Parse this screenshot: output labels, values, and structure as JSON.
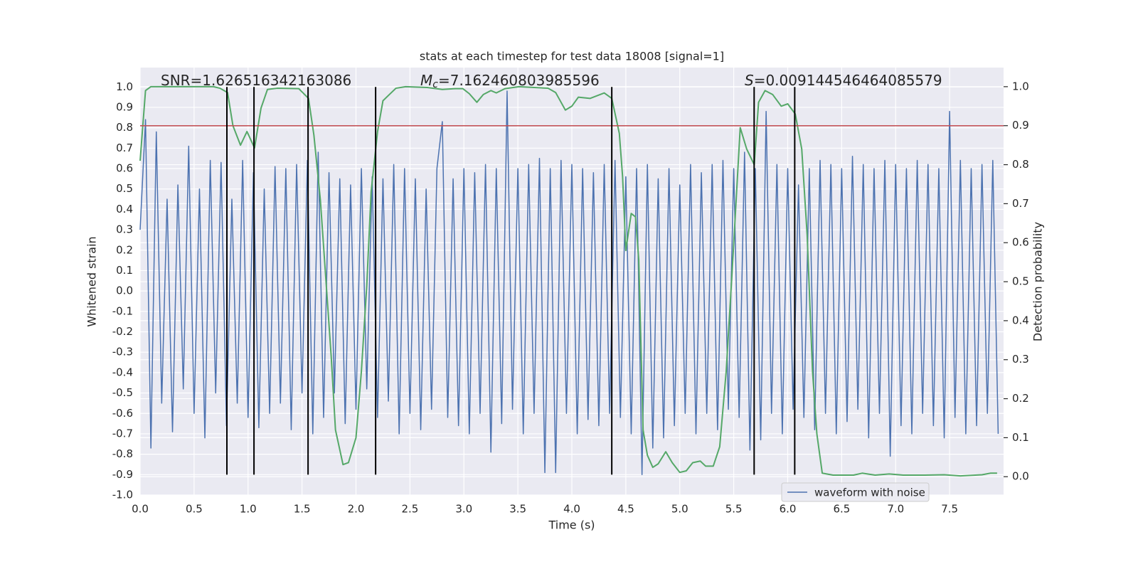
{
  "chart_data": {
    "type": "line",
    "title": "stats at each timestep for test data 18008 [signal=1]",
    "xlabel": "Time (s)",
    "ylabel": "Whitened strain",
    "y2label": "Detection probability",
    "xlim": [
      0,
      8.0
    ],
    "ylim": [
      -1.0,
      1.095
    ],
    "y2lim": [
      -0.047,
      1.049
    ],
    "xticks": [
      {
        "value": 0,
        "label": "0.0"
      },
      0.5,
      {
        "value": 1,
        "label": "1.0"
      },
      1.5,
      {
        "value": 2,
        "label": "2.0"
      },
      2.5,
      {
        "value": 3,
        "label": "3.0"
      },
      3.5,
      {
        "value": 4,
        "label": "4.0"
      },
      4.5,
      {
        "value": 5,
        "label": "5.0"
      },
      5.5,
      {
        "value": 6,
        "label": "6.0"
      },
      6.5,
      {
        "value": 7,
        "label": "7.0"
      },
      7.5
    ],
    "yticks": [
      {
        "value": -1,
        "label": "-1.0"
      },
      -0.9,
      -0.8,
      -0.7,
      -0.6,
      -0.5,
      -0.4,
      -0.3,
      -0.2,
      -0.1,
      {
        "value": 0,
        "label": "0.0"
      },
      0.1,
      0.2,
      0.3,
      0.4,
      0.5,
      0.6,
      0.7,
      0.8,
      0.9,
      {
        "value": 1,
        "label": "1.0"
      }
    ],
    "y2ticks": [
      {
        "value": 0,
        "label": "0.0"
      },
      0.1,
      0.2,
      0.3,
      0.4,
      0.5,
      0.6,
      0.7,
      0.8,
      0.9,
      {
        "value": 1,
        "label": "1.0"
      }
    ],
    "grid": true,
    "legend": "lower right",
    "annotations": [
      {
        "text": "SNR=1.626516342163086"
      },
      {
        "symbol": "M",
        "subscript": "c",
        "text": "=7.162460803985596"
      },
      {
        "symbol": "S",
        "text": "=0.009144546464085579"
      }
    ],
    "vlines": {
      "x": [
        0.804,
        1.055,
        1.556,
        2.182,
        4.37,
        5.689,
        6.065
      ],
      "ymin": -0.9,
      "ymax": 1.0,
      "color": "#000000"
    },
    "hline": {
      "y": 0.9,
      "axis": "y2",
      "color": "#c44e52"
    },
    "series": [
      {
        "name": "waveform with noise",
        "color": "#4c72b0",
        "axis": "y",
        "x": [
          0,
          0.05,
          0.1,
          0.15,
          0.2,
          0.25,
          0.3,
          0.35,
          0.4,
          0.45,
          0.5,
          0.55,
          0.6,
          0.65,
          0.7,
          0.75,
          0.8,
          0.85,
          0.9,
          0.95,
          1,
          1.05,
          1.1,
          1.15,
          1.2,
          1.25,
          1.3,
          1.35,
          1.4,
          1.45,
          1.5,
          1.55,
          1.6,
          1.65,
          1.7,
          1.75,
          1.8,
          1.85,
          1.9,
          1.95,
          2,
          2.05,
          2.1,
          2.15,
          2.2,
          2.25,
          2.3,
          2.35,
          2.4,
          2.45,
          2.5,
          2.55,
          2.6,
          2.65,
          2.7,
          2.75,
          2.8,
          2.85,
          2.9,
          2.95,
          3,
          3.05,
          3.1,
          3.15,
          3.2,
          3.25,
          3.3,
          3.35,
          3.4,
          3.45,
          3.5,
          3.55,
          3.6,
          3.65,
          3.7,
          3.75,
          3.8,
          3.85,
          3.9,
          3.95,
          4,
          4.05,
          4.1,
          4.15,
          4.2,
          4.25,
          4.3,
          4.35,
          4.4,
          4.45,
          4.5,
          4.55,
          4.6,
          4.65,
          4.7,
          4.75,
          4.8,
          4.85,
          4.9,
          4.95,
          5,
          5.05,
          5.1,
          5.15,
          5.2,
          5.25,
          5.3,
          5.35,
          5.4,
          5.45,
          5.5,
          5.55,
          5.6,
          5.65,
          5.7,
          5.75,
          5.8,
          5.85,
          5.9,
          5.95,
          6,
          6.05,
          6.1,
          6.15,
          6.2,
          6.25,
          6.3,
          6.35,
          6.4,
          6.45,
          6.5,
          6.55,
          6.6,
          6.65,
          6.7,
          6.75,
          6.8,
          6.85,
          6.9,
          6.95,
          7,
          7.05,
          7.1,
          7.15,
          7.2,
          7.25,
          7.3,
          7.35,
          7.4,
          7.45,
          7.5,
          7.55,
          7.6,
          7.65,
          7.7,
          7.75,
          7.8,
          7.85,
          7.9,
          7.95
        ],
        "values": [
          0.3,
          0.84,
          -0.77,
          0.78,
          -0.55,
          0.45,
          -0.69,
          0.52,
          -0.48,
          0.71,
          -0.6,
          0.5,
          -0.72,
          0.64,
          -0.5,
          0.63,
          -0.66,
          0.45,
          -0.55,
          0.64,
          -0.62,
          0.58,
          -0.67,
          0.5,
          -0.6,
          0.61,
          -0.55,
          0.6,
          -0.68,
          0.62,
          -0.5,
          0.64,
          -0.7,
          0.68,
          -0.62,
          0.58,
          -0.5,
          0.55,
          -0.65,
          0.52,
          -0.58,
          0.6,
          -0.48,
          0.56,
          -0.62,
          0.55,
          -0.54,
          0.62,
          -0.7,
          0.6,
          -0.6,
          0.55,
          -0.68,
          0.5,
          -0.58,
          0.6,
          0.83,
          -0.62,
          0.55,
          -0.66,
          0.6,
          -0.7,
          0.58,
          -0.6,
          0.62,
          -0.79,
          0.6,
          -0.65,
          0.98,
          -0.58,
          0.6,
          -0.7,
          0.62,
          -0.6,
          0.65,
          -0.89,
          0.6,
          -0.89,
          0.64,
          -0.6,
          0.62,
          -0.7,
          0.6,
          -0.63,
          0.58,
          -0.66,
          0.62,
          -0.6,
          0.64,
          -0.62,
          0.56,
          -0.7,
          0.6,
          -0.9,
          0.62,
          -0.77,
          0.55,
          -0.72,
          0.6,
          -0.66,
          0.52,
          -0.6,
          0.62,
          -0.7,
          0.58,
          -0.6,
          0.62,
          -0.68,
          0.64,
          -0.58,
          0.6,
          -0.62,
          0.68,
          -0.78,
          0.6,
          -0.73,
          0.88,
          -0.6,
          0.62,
          -0.7,
          0.6,
          -0.58,
          0.52,
          -0.62,
          0.6,
          -0.68,
          0.64,
          -0.6,
          0.62,
          -0.7,
          0.6,
          -0.64,
          0.66,
          -0.58,
          0.62,
          -0.72,
          0.6,
          -0.6,
          0.64,
          -0.81,
          0.62,
          -0.66,
          0.6,
          -0.7,
          0.64,
          -0.6,
          0.62,
          -0.66,
          0.6,
          -0.72,
          0.88,
          -0.62,
          0.64,
          -0.7,
          0.6,
          -0.66,
          0.62,
          -0.6,
          0.64,
          -0.7
        ]
      },
      {
        "color": "#55a868",
        "axis": "y2",
        "x": [
          0,
          0.05,
          0.1,
          0.68,
          0.74,
          0.81,
          0.86,
          0.93,
          0.99,
          1.06,
          1.12,
          1.18,
          1.27,
          1.47,
          1.56,
          1.61,
          1.67,
          1.72,
          1.77,
          1.81,
          1.88,
          1.93,
          2,
          2.05,
          2.1,
          2.14,
          2.2,
          2.25,
          2.31,
          2.37,
          2.46,
          2.66,
          2.8,
          2.92,
          2.99,
          3.05,
          3.12,
          3.18,
          3.25,
          3.3,
          3.38,
          3.51,
          3.78,
          3.85,
          3.88,
          3.94,
          4,
          4.06,
          4.17,
          4.3,
          4.37,
          4.44,
          4.47,
          4.5,
          4.55,
          4.59,
          4.62,
          4.66,
          4.7,
          4.75,
          4.8,
          4.87,
          4.93,
          5,
          5.06,
          5.12,
          5.19,
          5.24,
          5.31,
          5.37,
          5.43,
          5.49,
          5.56,
          5.62,
          5.69,
          5.73,
          5.79,
          5.86,
          5.94,
          6,
          6.07,
          6.13,
          6.18,
          6.23,
          6.27,
          6.32,
          6.42,
          6.61,
          6.69,
          6.81,
          6.94,
          7.07,
          7.27,
          7.45,
          7.6,
          7.8,
          7.88,
          7.94
        ],
        "values": [
          0.81,
          0.99,
          1.0,
          1.0,
          0.996,
          0.985,
          0.9,
          0.85,
          0.885,
          0.843,
          0.945,
          0.993,
          0.996,
          0.995,
          0.97,
          0.876,
          0.71,
          0.51,
          0.31,
          0.12,
          0.031,
          0.036,
          0.1,
          0.27,
          0.49,
          0.73,
          0.885,
          0.964,
          0.98,
          0.996,
          1.0,
          0.998,
          0.993,
          0.995,
          0.995,
          0.982,
          0.96,
          0.98,
          0.99,
          0.984,
          0.995,
          1.0,
          0.996,
          0.985,
          0.97,
          0.94,
          0.95,
          0.973,
          0.97,
          0.984,
          0.97,
          0.88,
          0.77,
          0.58,
          0.675,
          0.666,
          0.556,
          0.12,
          0.055,
          0.024,
          0.033,
          0.064,
          0.036,
          0.011,
          0.015,
          0.036,
          0.04,
          0.027,
          0.027,
          0.077,
          0.27,
          0.55,
          0.895,
          0.84,
          0.8,
          0.96,
          0.99,
          0.98,
          0.95,
          0.956,
          0.93,
          0.84,
          0.62,
          0.27,
          0.11,
          0.009,
          0.004,
          0.004,
          0.009,
          0.004,
          0.007,
          0.004,
          0.004,
          0.005,
          0.002,
          0.005,
          0.009,
          0.009
        ]
      }
    ]
  }
}
